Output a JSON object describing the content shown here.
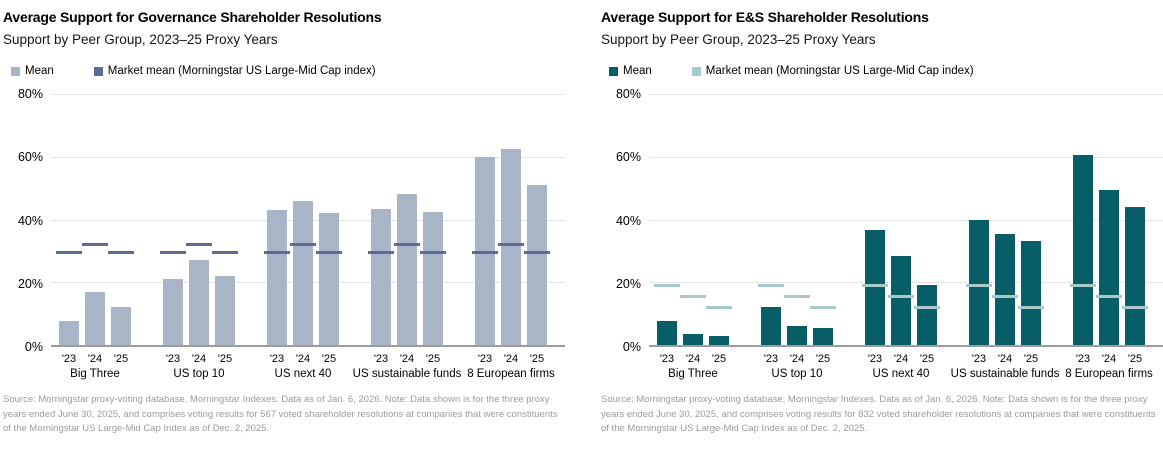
{
  "chart_data": [
    {
      "type": "bar",
      "title": "Average Support for Governance Shareholder Resolutions",
      "subtitle": "Support by Peer Group, 2023–25 Proxy Years",
      "legend": [
        {
          "label": "Mean"
        },
        {
          "label": "Market mean (Morningstar US Large-Mid Cap index)"
        }
      ],
      "categories": [
        "Big Three",
        "US top 10",
        "US next 40",
        "US sustainable funds",
        "8 European firms"
      ],
      "x_sublabels": [
        "'23",
        "'24",
        "'25"
      ],
      "series": [
        {
          "name": "Mean",
          "style": "bar",
          "color": "#aab4c7",
          "values": [
            [
              7.5,
              17,
              12
            ],
            [
              21,
              27,
              22
            ],
            [
              43,
              46,
              42
            ],
            [
              43.5,
              48,
              42.5
            ],
            [
              60,
              62.5,
              51
            ]
          ]
        },
        {
          "name": "Market mean (Morningstar US Large-Mid Cap index)",
          "style": "dash-marker",
          "color": "#5b6b94",
          "values": [
            [
              29.5,
              32,
              29.5
            ],
            [
              29.5,
              32,
              29.5
            ],
            [
              29.5,
              32,
              29.5
            ],
            [
              29.5,
              32,
              29.5
            ],
            [
              29.5,
              32,
              29.5
            ]
          ]
        }
      ],
      "ylim": [
        0,
        80
      ],
      "yticks": [
        {
          "value": 80,
          "label": "80%"
        },
        {
          "value": 60,
          "label": "60%"
        },
        {
          "value": 40,
          "label": "40%"
        },
        {
          "value": 20,
          "label": "20%"
        },
        {
          "value": 0,
          "label": "0%"
        }
      ],
      "grid": "horizontal",
      "legend_position": "top",
      "footnote": "Source: Morningstar proxy-voting database, Morningstar Indexes. Data as of Jan. 6, 2026. Note: Data shown is for the three proxy years ended June 30, 2025, and comprises voting results for 567 voted shareholder resolutions at companies that were constituents of the Morningstar US Large-Mid Cap Index as of Dec. 2, 2025."
    },
    {
      "type": "bar",
      "title": "Average Support for E&S Shareholder Resolutions",
      "subtitle": "Support by Peer Group, 2023–25 Proxy Years",
      "legend": [
        {
          "label": "Mean"
        },
        {
          "label": "Market mean (Morningstar US Large-Mid Cap index)"
        }
      ],
      "categories": [
        "Big Three",
        "US top 10",
        "US next 40",
        "US sustainable funds",
        "8 European firms"
      ],
      "x_sublabels": [
        "'23",
        "'24",
        "'25"
      ],
      "series": [
        {
          "name": "Mean",
          "style": "bar",
          "color": "#075e67",
          "values": [
            [
              7.5,
              3.5,
              3
            ],
            [
              12,
              6,
              5.5
            ],
            [
              36.5,
              28.5,
              19
            ],
            [
              40,
              35.5,
              33
            ],
            [
              60.5,
              49.5,
              44
            ]
          ]
        },
        {
          "name": "Market mean (Morningstar US Large-Mid Cap index)",
          "style": "dash-marker",
          "color": "#a9c8ca",
          "values": [
            [
              19,
              15.5,
              12
            ],
            [
              19,
              15.5,
              12
            ],
            [
              19,
              15.5,
              12
            ],
            [
              19,
              15.5,
              12
            ],
            [
              19,
              15.5,
              12
            ]
          ]
        }
      ],
      "ylim": [
        0,
        80
      ],
      "yticks": [
        {
          "value": 80,
          "label": "80%"
        },
        {
          "value": 60,
          "label": "60%"
        },
        {
          "value": 40,
          "label": "40%"
        },
        {
          "value": 20,
          "label": "20%"
        },
        {
          "value": 0,
          "label": "0%"
        }
      ],
      "grid": "horizontal",
      "legend_position": "top",
      "footnote": "Source: Morningstar proxy-voting database, Morningstar Indexes. Data as of Jan. 6, 2026. Note: Data shown is for the three proxy years ended June 30, 2025, and comprises voting results for 832 voted shareholder resolutions at companies that were constituents of the Morningstar US Large-Mid Cap Index as of Dec. 2, 2025."
    }
  ]
}
